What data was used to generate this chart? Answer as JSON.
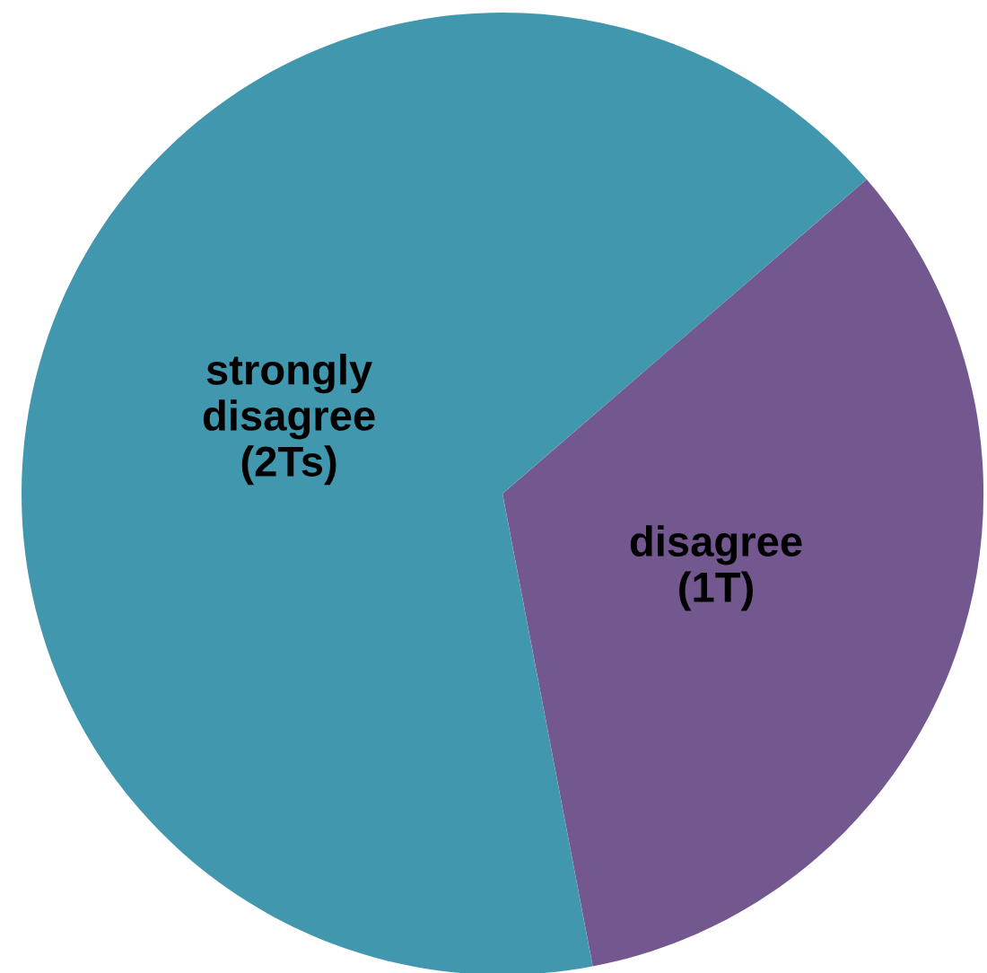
{
  "chart_data": {
    "type": "pie",
    "categories": [
      "strongly\ndisagree\n(2Ts)",
      "disagree\n(1T)"
    ],
    "values": [
      66.67,
      33.33
    ],
    "colors": [
      "#4198ae",
      "#73588f"
    ]
  }
}
